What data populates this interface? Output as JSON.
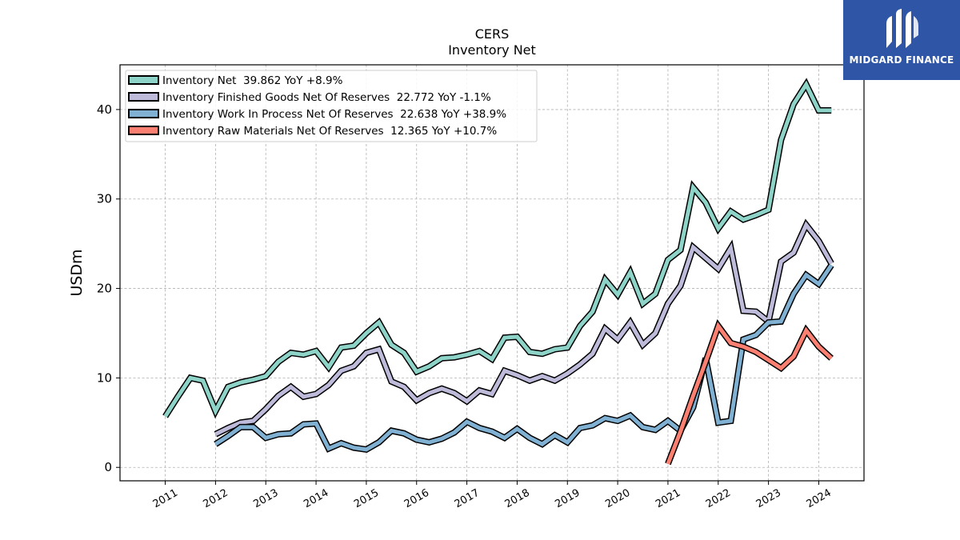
{
  "logo": {
    "text": "MIDGARD FINANCE",
    "icon": "midgard-m-mark",
    "color": "#2f56a6"
  },
  "chart_data": {
    "type": "line",
    "title": "CERS",
    "subtitle": "Inventory Net",
    "ylabel": "USDm",
    "xlabel": "",
    "ylim": [
      -1.5,
      45
    ],
    "xlim": [
      2010.1,
      2024.9
    ],
    "yticks": [
      0,
      10,
      20,
      30,
      40
    ],
    "xticks": [
      2011,
      2012,
      2013,
      2014,
      2015,
      2016,
      2017,
      2018,
      2019,
      2020,
      2021,
      2022,
      2023,
      2024
    ],
    "grid": true,
    "legend_position": "top-left",
    "series": [
      {
        "name": "Inventory Net  39.862 YoY +8.9%",
        "color": "#8dd3c7",
        "x": [
          2011.0,
          2011.25,
          2011.5,
          2011.75,
          2012.0,
          2012.25,
          2012.5,
          2012.75,
          2013.0,
          2013.25,
          2013.5,
          2013.75,
          2014.0,
          2014.25,
          2014.5,
          2014.75,
          2015.0,
          2015.25,
          2015.5,
          2015.75,
          2016.0,
          2016.25,
          2016.5,
          2016.75,
          2017.0,
          2017.25,
          2017.5,
          2017.75,
          2018.0,
          2018.25,
          2018.5,
          2018.75,
          2019.0,
          2019.25,
          2019.5,
          2019.75,
          2020.0,
          2020.25,
          2020.5,
          2020.75,
          2021.0,
          2021.25,
          2021.5,
          2021.75,
          2022.0,
          2022.25,
          2022.5,
          2022.75,
          2023.0,
          2023.25,
          2023.5,
          2023.75,
          2024.0,
          2024.25
        ],
        "values": [
          5.7,
          7.9,
          10.0,
          9.7,
          6.3,
          9.0,
          9.5,
          9.8,
          10.2,
          11.8,
          12.8,
          12.6,
          13.0,
          11.2,
          13.4,
          13.6,
          15.0,
          16.2,
          13.7,
          12.8,
          10.7,
          11.3,
          12.2,
          12.3,
          12.6,
          13.0,
          12.1,
          14.5,
          14.6,
          12.9,
          12.7,
          13.2,
          13.4,
          15.8,
          17.4,
          21.0,
          19.3,
          21.8,
          18.3,
          19.4,
          23.2,
          24.3,
          31.3,
          29.6,
          26.7,
          28.6,
          27.7,
          28.2,
          28.8,
          36.6,
          40.6,
          42.8,
          39.9,
          39.9
        ]
      },
      {
        "name": "Inventory Finished Goods Net Of Reserves  22.772 YoY -1.1%",
        "color": "#bebada",
        "x": [
          2012.0,
          2012.25,
          2012.5,
          2012.75,
          2013.0,
          2013.25,
          2013.5,
          2013.75,
          2014.0,
          2014.25,
          2014.5,
          2014.75,
          2015.0,
          2015.25,
          2015.5,
          2015.75,
          2016.0,
          2016.25,
          2016.5,
          2016.75,
          2017.0,
          2017.25,
          2017.5,
          2017.75,
          2018.0,
          2018.25,
          2018.5,
          2018.75,
          2019.0,
          2019.25,
          2019.5,
          2019.75,
          2020.0,
          2020.25,
          2020.5,
          2020.75,
          2021.0,
          2021.25,
          2021.5,
          2021.75,
          2022.0,
          2022.25,
          2022.5,
          2022.75,
          2023.0,
          2023.25,
          2023.5,
          2023.75,
          2024.0,
          2024.25
        ],
        "values": [
          3.7,
          4.4,
          5.0,
          5.2,
          6.5,
          8.0,
          9.0,
          7.9,
          8.2,
          9.2,
          10.8,
          11.3,
          12.8,
          13.2,
          9.6,
          9.0,
          7.5,
          8.3,
          8.8,
          8.3,
          7.4,
          8.6,
          8.2,
          10.8,
          10.3,
          9.7,
          10.2,
          9.7,
          10.5,
          11.5,
          12.7,
          15.5,
          14.3,
          16.2,
          13.7,
          15.0,
          18.3,
          20.3,
          24.6,
          23.4,
          22.2,
          24.5,
          17.5,
          17.4,
          16.3,
          23.0,
          24.0,
          27.1,
          25.3,
          22.8
        ]
      },
      {
        "name": "Inventory Work In Process Net Of Reserves  22.638 YoY +38.9%",
        "color": "#80b1d3",
        "x": [
          2012.0,
          2012.25,
          2012.5,
          2012.75,
          2013.0,
          2013.25,
          2013.5,
          2013.75,
          2014.0,
          2014.25,
          2014.5,
          2014.75,
          2015.0,
          2015.25,
          2015.5,
          2015.75,
          2016.0,
          2016.25,
          2016.5,
          2016.75,
          2017.0,
          2017.25,
          2017.5,
          2017.75,
          2018.0,
          2018.25,
          2018.5,
          2018.75,
          2019.0,
          2019.25,
          2019.5,
          2019.75,
          2020.0,
          2020.25,
          2020.5,
          2020.75,
          2021.0,
          2021.25,
          2021.5,
          2021.75,
          2022.0,
          2022.25,
          2022.5,
          2022.75,
          2023.0,
          2023.25,
          2023.5,
          2023.75,
          2024.0,
          2024.25
        ],
        "values": [
          2.6,
          3.5,
          4.5,
          4.5,
          3.3,
          3.7,
          3.8,
          4.8,
          4.9,
          2.1,
          2.7,
          2.2,
          2.0,
          2.8,
          4.1,
          3.8,
          3.1,
          2.8,
          3.2,
          3.9,
          5.1,
          4.4,
          4.0,
          3.3,
          4.3,
          3.3,
          2.6,
          3.6,
          2.8,
          4.4,
          4.7,
          5.5,
          5.2,
          5.8,
          4.5,
          4.2,
          5.2,
          4.1,
          6.7,
          12.2,
          5.0,
          5.2,
          14.3,
          14.8,
          16.2,
          16.3,
          19.4,
          21.5,
          20.5,
          22.6
        ]
      },
      {
        "name": "Inventory Raw Materials Net Of Reserves  12.365 YoY +10.7%",
        "color": "#fb8072",
        "x": [
          2021.0,
          2021.25,
          2021.5,
          2021.75,
          2022.0,
          2022.25,
          2022.5,
          2022.75,
          2023.0,
          2023.25,
          2023.5,
          2023.75,
          2024.0,
          2024.25
        ],
        "values": [
          0.4,
          4.0,
          8.0,
          11.8,
          15.8,
          13.9,
          13.5,
          12.9,
          12.0,
          11.1,
          12.4,
          15.3,
          13.5,
          12.2
        ]
      }
    ]
  }
}
